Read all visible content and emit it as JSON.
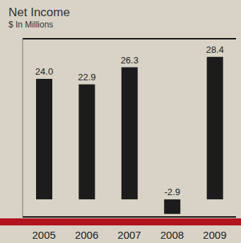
{
  "chart_data": {
    "type": "bar",
    "title": "Net Income",
    "subtitle": "$ In Millions",
    "categories": [
      "2005",
      "2006",
      "2007",
      "2008",
      "2009"
    ],
    "values": [
      24.0,
      22.9,
      26.3,
      -2.9,
      28.4
    ],
    "value_labels": [
      "24.0",
      "22.9",
      "26.3",
      "-2.9",
      "28.4"
    ],
    "color": "#1c1c1c",
    "ylim": [
      -3.5,
      32
    ],
    "yticks": [
      0
    ],
    "grid": true,
    "data_labels": true,
    "tick_labels": "x"
  }
}
